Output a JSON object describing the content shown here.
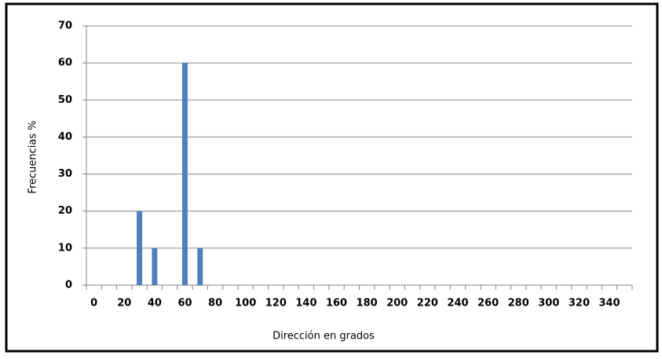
{
  "chart_data": {
    "type": "bar",
    "x_label": "Dirección en grados",
    "y_label": "Frecuencias %",
    "categories": [
      "0",
      null,
      "20",
      null,
      "40",
      null,
      "60",
      null,
      "80",
      null,
      "100",
      null,
      "120",
      null,
      "140",
      null,
      "160",
      null,
      "180",
      null,
      "200",
      null,
      "220",
      null,
      "240",
      null,
      "260",
      null,
      "280",
      null,
      "300",
      null,
      "320",
      null,
      "340",
      null
    ],
    "values": [
      0,
      0,
      0,
      20,
      10,
      0,
      60,
      10,
      0,
      0,
      0,
      0,
      0,
      0,
      0,
      0,
      0,
      0,
      0,
      0,
      0,
      0,
      0,
      0,
      0,
      0,
      0,
      0,
      0,
      0,
      0,
      0,
      0,
      0,
      0,
      0
    ],
    "color": "#4f81bd",
    "ylim": [
      0,
      70
    ],
    "yticks": [
      0,
      10,
      20,
      30,
      40,
      50,
      60,
      70
    ],
    "grid": true
  }
}
